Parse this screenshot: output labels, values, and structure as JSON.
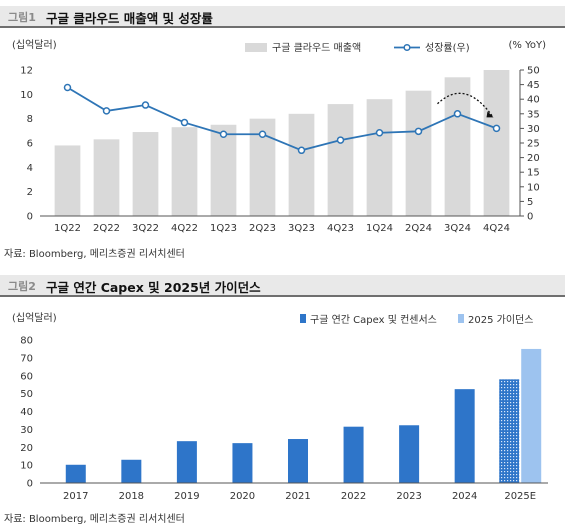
{
  "figure1": {
    "number": "그림1",
    "title": "구글 클라우드 매출액 및 성장률",
    "source": "자료: Bloomberg, 메리츠증권 리서치센터"
  },
  "figure2": {
    "number": "그림2",
    "title": "구글 연간 Capex 및 2025년 가이던스",
    "source": "자료: Bloomberg, 메리츠증권 리서치센터"
  },
  "colors": {
    "bar_gray": "#d9d9d9",
    "line_blue": "#2e75b6",
    "bar_blue": "#2e75c9",
    "bar_light_blue": "#9dc3ef"
  },
  "chart_data": [
    {
      "type": "bar",
      "unit_left": "(십억달러)",
      "unit_right": "(% YoY)",
      "categories": [
        "1Q22",
        "2Q22",
        "3Q22",
        "4Q22",
        "1Q23",
        "2Q23",
        "3Q23",
        "4Q23",
        "1Q24",
        "2Q24",
        "3Q24",
        "4Q24"
      ],
      "series": [
        {
          "name": "구글 클라우드 매출액",
          "type": "bar",
          "axis": "left",
          "values": [
            5.8,
            6.3,
            6.9,
            7.3,
            7.5,
            8.0,
            8.4,
            9.2,
            9.6,
            10.3,
            11.4,
            12.0
          ]
        },
        {
          "name": "성장률(우)",
          "type": "line",
          "axis": "right",
          "values": [
            44,
            36,
            38,
            32,
            28,
            28,
            22.5,
            26,
            28.5,
            29,
            35,
            30
          ]
        }
      ],
      "ylim_left": [
        0,
        12
      ],
      "yticks_left": [
        0,
        2,
        4,
        6,
        8,
        10,
        12
      ],
      "ylim_right": [
        0,
        50
      ],
      "yticks_right": [
        0,
        5,
        10,
        15,
        20,
        25,
        30,
        35,
        40,
        45,
        50
      ],
      "annotation": "dotted curved arrow over 3Q24-4Q24 decline",
      "legend_position": "top-right",
      "grid": false
    },
    {
      "type": "bar",
      "unit_left": "(십억달러)",
      "categories": [
        "2017",
        "2018",
        "2019",
        "2020",
        "2021",
        "2022",
        "2023",
        "2024",
        "2025E"
      ],
      "values": [
        10.2,
        13.0,
        23.4,
        22.3,
        24.6,
        31.5,
        32.3,
        52.5,
        58
      ],
      "guidance": {
        "category": "2025E",
        "value": 75
      },
      "legend": [
        "구글 연간 Capex 및 컨센서스",
        "2025 가이던스"
      ],
      "ylim": [
        0,
        80
      ],
      "yticks": [
        0,
        10,
        20,
        30,
        40,
        50,
        60,
        70,
        80
      ],
      "legend_position": "top-right",
      "grid": false
    }
  ]
}
